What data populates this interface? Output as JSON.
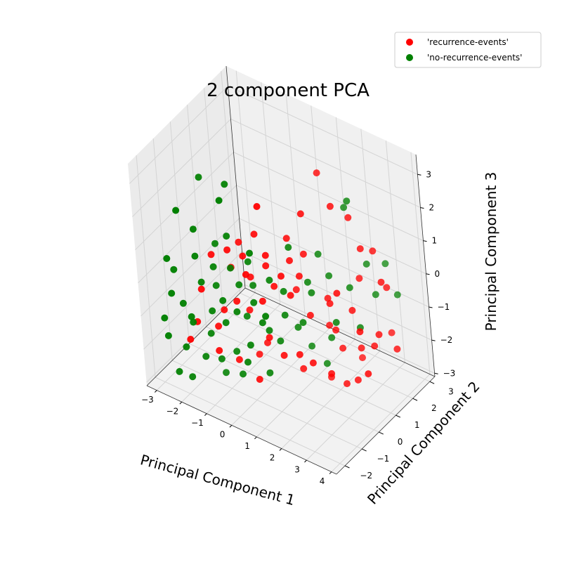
{
  "chart_data": {
    "type": "scatter",
    "dimensions": 3,
    "title": "2 component PCA",
    "xlabel": "Principal Component 1",
    "ylabel": "Principal Component 2",
    "zlabel": "Principal Component 3",
    "xlim": [
      -3.4,
      4.2
    ],
    "ylim": [
      -2.5,
      3.3
    ],
    "zlim": [
      -3.1,
      3.6
    ],
    "xticks": [
      "−3",
      "−2",
      "−1",
      "0",
      "1",
      "2",
      "3",
      "4"
    ],
    "yticks": [
      "−2",
      "−1",
      "0",
      "1",
      "2",
      "3"
    ],
    "zticks": [
      "−3",
      "−2",
      "−1",
      "0",
      "1",
      "2",
      "3"
    ],
    "grid": true,
    "legend_position": "top-right",
    "series": [
      {
        "name": "'recurrence-events'",
        "color": "#ff0000",
        "points": [
          [
            0.6,
            -0.9,
            2.9
          ],
          [
            1.6,
            1.2,
            3.2
          ],
          [
            2.2,
            1.0,
            2.5
          ],
          [
            2.6,
            1.4,
            2.1
          ],
          [
            1.4,
            0.4,
            2.3
          ],
          [
            3.0,
            1.4,
            1.3
          ],
          [
            3.2,
            1.8,
            1.1
          ],
          [
            3.6,
            1.6,
            0.4
          ],
          [
            3.5,
            2.0,
            0.0
          ],
          [
            -0.6,
            -0.5,
            1.2
          ],
          [
            -0.4,
            -0.6,
            0.9
          ],
          [
            0.0,
            -0.4,
            1.6
          ],
          [
            0.8,
            0.3,
            1.4
          ],
          [
            0.4,
            -0.4,
            1.1
          ],
          [
            1.0,
            0.1,
            0.9
          ],
          [
            0.3,
            -0.3,
            0.7
          ],
          [
            1.3,
            0.5,
            1.0
          ],
          [
            -1.0,
            -0.5,
            0.3
          ],
          [
            -0.3,
            -0.4,
            0.2
          ],
          [
            0.5,
            -0.2,
            0.1
          ],
          [
            1.2,
            0.3,
            0.4
          ],
          [
            1.0,
            0.0,
            -0.1
          ],
          [
            0.2,
            -0.5,
            -0.3
          ],
          [
            -0.8,
            -0.6,
            -0.6
          ],
          [
            -1.2,
            -0.8,
            -0.9
          ],
          [
            -0.6,
            -0.2,
            -1.0
          ],
          [
            2.0,
            0.8,
            -0.4
          ],
          [
            2.4,
            0.7,
            0.1
          ],
          [
            2.6,
            1.2,
            -0.6
          ],
          [
            3.0,
            1.0,
            -1.0
          ],
          [
            3.4,
            1.5,
            -1.2
          ],
          [
            3.1,
            1.6,
            -1.7
          ],
          [
            2.7,
            1.4,
            -1.8
          ],
          [
            3.4,
            2.2,
            -1.5
          ],
          [
            3.8,
            1.9,
            -1.7
          ],
          [
            3.2,
            1.0,
            -2.2
          ],
          [
            2.0,
            1.0,
            -1.3
          ],
          [
            1.3,
            0.6,
            -0.9
          ],
          [
            0.2,
            -0.3,
            -1.5
          ],
          [
            -0.2,
            0.1,
            -2.0
          ],
          [
            0.6,
            -0.1,
            -2.0
          ],
          [
            1.1,
            0.1,
            -1.9
          ],
          [
            1.4,
            0.4,
            -2.2
          ],
          [
            1.9,
            0.7,
            -2.5
          ],
          [
            2.2,
            1.1,
            -2.9
          ],
          [
            2.6,
            1.2,
            -2.7
          ],
          [
            0.9,
            0.5,
            -2.6
          ],
          [
            -0.5,
            0.0,
            -2.4
          ],
          [
            -1.5,
            -0.8,
            -1.5
          ],
          [
            -1.9,
            -1.4,
            -1.2
          ],
          [
            -2.1,
            -1.6,
            -1.7
          ],
          [
            -1.4,
            -1.0,
            -2.1
          ],
          [
            -0.9,
            -0.6,
            -2.4
          ],
          [
            -0.2,
            -0.5,
            -2.8
          ],
          [
            1.5,
            1.2,
            -3.0
          ],
          [
            2.4,
            1.8,
            -2.4
          ],
          [
            2.0,
            1.3,
            -2.0
          ],
          [
            1.7,
            1.1,
            -0.5
          ],
          [
            0.8,
            0.6,
            -0.3
          ],
          [
            1.6,
            1.2,
            -1.4
          ],
          [
            -0.1,
            -0.9,
            0.6
          ],
          [
            0.9,
            -0.3,
            0.6
          ],
          [
            -1.4,
            -1.0,
            0.8
          ],
          [
            -0.8,
            -0.9,
            1.1
          ],
          [
            2.7,
            1.6,
            0.2
          ],
          [
            -1.7,
            -1.3,
            -0.2
          ]
        ]
      },
      {
        "name": "'no-recurrence-events'",
        "color": "#008000",
        "points": [
          [
            -1.5,
            -1.2,
            3.2
          ],
          [
            -0.6,
            -1.0,
            3.2
          ],
          [
            -0.5,
            -1.5,
            3.0
          ],
          [
            -1.8,
            -2.2,
            2.6
          ],
          [
            2.3,
            1.6,
            2.2
          ],
          [
            2.6,
            1.4,
            2.6
          ],
          [
            0.2,
            -1.0,
            1.4
          ],
          [
            1.0,
            0.1,
            1.3
          ],
          [
            1.6,
            0.9,
            0.9
          ],
          [
            1.9,
            1.0,
            0.3
          ],
          [
            2.5,
            1.3,
            0.0
          ],
          [
            3.1,
            1.9,
            -0.3
          ],
          [
            3.7,
            2.3,
            -0.3
          ],
          [
            -0.2,
            -0.6,
            0.8
          ],
          [
            -0.8,
            -0.8,
            0.5
          ],
          [
            -1.2,
            -1.2,
            0.6
          ],
          [
            -1.6,
            -1.4,
            0.1
          ],
          [
            -1.3,
            -1.0,
            -0.1
          ],
          [
            -0.5,
            -0.8,
            0.1
          ],
          [
            0.4,
            -0.3,
            0.3
          ],
          [
            0.8,
            -0.1,
            0.0
          ],
          [
            1.5,
            0.5,
            -0.1
          ],
          [
            -0.1,
            -0.6,
            -0.4
          ],
          [
            -0.6,
            -0.9,
            -0.7
          ],
          [
            -1.0,
            -1.1,
            -0.4
          ],
          [
            -1.4,
            -1.2,
            -0.8
          ],
          [
            -2.2,
            -1.7,
            -0.6
          ],
          [
            -2.5,
            -1.9,
            -0.3
          ],
          [
            -2.0,
            -1.5,
            -1.2
          ],
          [
            -1.6,
            -1.1,
            -1.6
          ],
          [
            -2.3,
            -1.6,
            -2.0
          ],
          [
            -1.9,
            -1.1,
            -2.4
          ],
          [
            -2.6,
            -1.7,
            -2.8
          ],
          [
            -2.3,
            -1.4,
            -3.0
          ],
          [
            -1.4,
            -0.9,
            -2.4
          ],
          [
            -0.9,
            -0.7,
            -2.1
          ],
          [
            -0.3,
            -0.7,
            -1.7
          ],
          [
            0.3,
            -0.4,
            -1.2
          ],
          [
            0.7,
            0.0,
            -0.8
          ],
          [
            1.2,
            0.3,
            -1.0
          ],
          [
            2.2,
            0.8,
            -0.9
          ],
          [
            2.8,
            1.3,
            -1.1
          ],
          [
            1.1,
            0.8,
            -2.0
          ],
          [
            0.1,
            -0.3,
            -2.6
          ],
          [
            -0.8,
            -0.6,
            -2.8
          ],
          [
            -1.5,
            -0.6,
            -3.0
          ],
          [
            -1.1,
            -0.9,
            -1.2
          ],
          [
            -0.5,
            -0.5,
            -1.0
          ],
          [
            0.5,
            -0.1,
            -1.6
          ],
          [
            1.8,
            1.0,
            -1.6
          ],
          [
            -1.7,
            -1.5,
            0.9
          ],
          [
            -2.4,
            -1.8,
            0.4
          ],
          [
            -2.8,
            -2.0,
            -1.1
          ],
          [
            -2.7,
            -2.0,
            -1.6
          ],
          [
            -1.2,
            -1.0,
            1.2
          ],
          [
            -0.3,
            -0.3,
            -0.1
          ],
          [
            0.2,
            -0.6,
            -0.9
          ],
          [
            1.6,
            0.9,
            -2.4
          ],
          [
            -0.4,
            -0.8,
            -2.2
          ],
          [
            2.9,
            1.8,
            0.6
          ],
          [
            -1.9,
            -1.7,
            -0.9
          ],
          [
            0.9,
            0.4,
            -1.3
          ],
          [
            -0.7,
            -1.0,
            1.6
          ],
          [
            -1.6,
            -1.6,
            1.8
          ],
          [
            0.5,
            -0.8,
            -0.5
          ],
          [
            -2.5,
            -2.0,
            0.8
          ],
          [
            3.3,
            2.3,
            0.5
          ],
          [
            1.3,
            0.6,
            0.1
          ]
        ]
      }
    ]
  }
}
